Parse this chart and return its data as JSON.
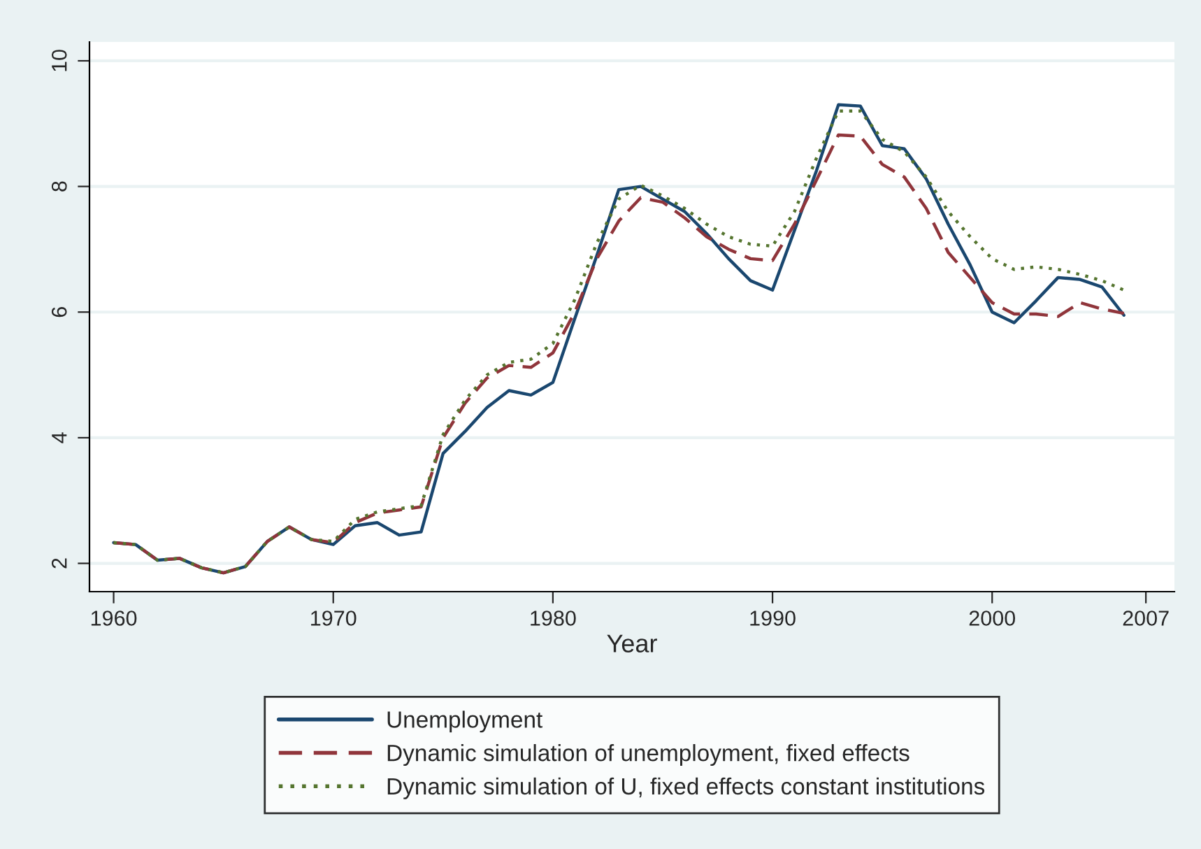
{
  "chart_data": {
    "type": "line",
    "xlabel": "Year",
    "x": [
      1960,
      1961,
      1962,
      1963,
      1964,
      1965,
      1966,
      1967,
      1968,
      1969,
      1970,
      1971,
      1972,
      1973,
      1974,
      1975,
      1976,
      1977,
      1978,
      1979,
      1980,
      1981,
      1982,
      1983,
      1984,
      1985,
      1986,
      1987,
      1988,
      1989,
      1990,
      1991,
      1992,
      1993,
      1994,
      1995,
      1996,
      1997,
      1998,
      1999,
      2000,
      2001,
      2002,
      2003,
      2004,
      2005,
      2006
    ],
    "series": [
      {
        "name": "Unemployment",
        "color": "#1a476f",
        "line_style": "solid",
        "values": [
          2.33,
          2.3,
          2.05,
          2.08,
          1.93,
          1.85,
          1.95,
          2.35,
          2.58,
          2.38,
          2.3,
          2.6,
          2.65,
          2.45,
          2.5,
          3.75,
          4.1,
          4.48,
          4.75,
          4.68,
          4.88,
          5.9,
          6.9,
          7.95,
          8.0,
          7.8,
          7.6,
          7.25,
          6.85,
          6.5,
          6.35,
          7.3,
          8.25,
          9.3,
          9.28,
          8.65,
          8.6,
          8.12,
          7.4,
          6.75,
          6.0,
          5.83,
          6.18,
          6.55,
          6.52,
          6.4,
          5.95
        ]
      },
      {
        "name": "Dynamic simulation of unemployment, fixed effects",
        "color": "#90353b",
        "line_style": "dashed",
        "values": [
          2.33,
          2.3,
          2.05,
          2.08,
          1.93,
          1.85,
          1.95,
          2.35,
          2.58,
          2.38,
          2.33,
          2.65,
          2.8,
          2.85,
          2.9,
          4.0,
          4.55,
          4.95,
          5.15,
          5.12,
          5.35,
          6.0,
          6.85,
          7.45,
          7.82,
          7.75,
          7.5,
          7.2,
          7.0,
          6.85,
          6.82,
          7.4,
          8.1,
          8.82,
          8.8,
          8.35,
          8.15,
          7.65,
          6.95,
          6.55,
          6.15,
          5.97,
          5.97,
          5.93,
          6.15,
          6.05,
          5.98
        ]
      },
      {
        "name": "Dynamic simulation of U, fixed effects constant institutions",
        "color": "#55752f",
        "line_style": "dotted",
        "values": [
          2.33,
          2.3,
          2.05,
          2.08,
          1.93,
          1.85,
          1.95,
          2.35,
          2.58,
          2.38,
          2.35,
          2.7,
          2.82,
          2.87,
          2.92,
          4.05,
          4.6,
          5.0,
          5.2,
          5.25,
          5.5,
          6.2,
          7.1,
          7.8,
          8.02,
          7.85,
          7.65,
          7.4,
          7.2,
          7.08,
          7.05,
          7.6,
          8.45,
          9.2,
          9.2,
          8.75,
          8.55,
          8.15,
          7.6,
          7.2,
          6.85,
          6.68,
          6.72,
          6.68,
          6.6,
          6.5,
          6.35
        ]
      }
    ],
    "xlim": [
      1958.9,
      2008.3
    ],
    "xticks": [
      1960,
      1970,
      1980,
      1990,
      2000,
      2007
    ],
    "ylim": [
      1.55,
      10.3
    ],
    "yticks": [
      2,
      4,
      6,
      8,
      10
    ],
    "grid": "y",
    "legend": "bottom",
    "marker": "none"
  }
}
